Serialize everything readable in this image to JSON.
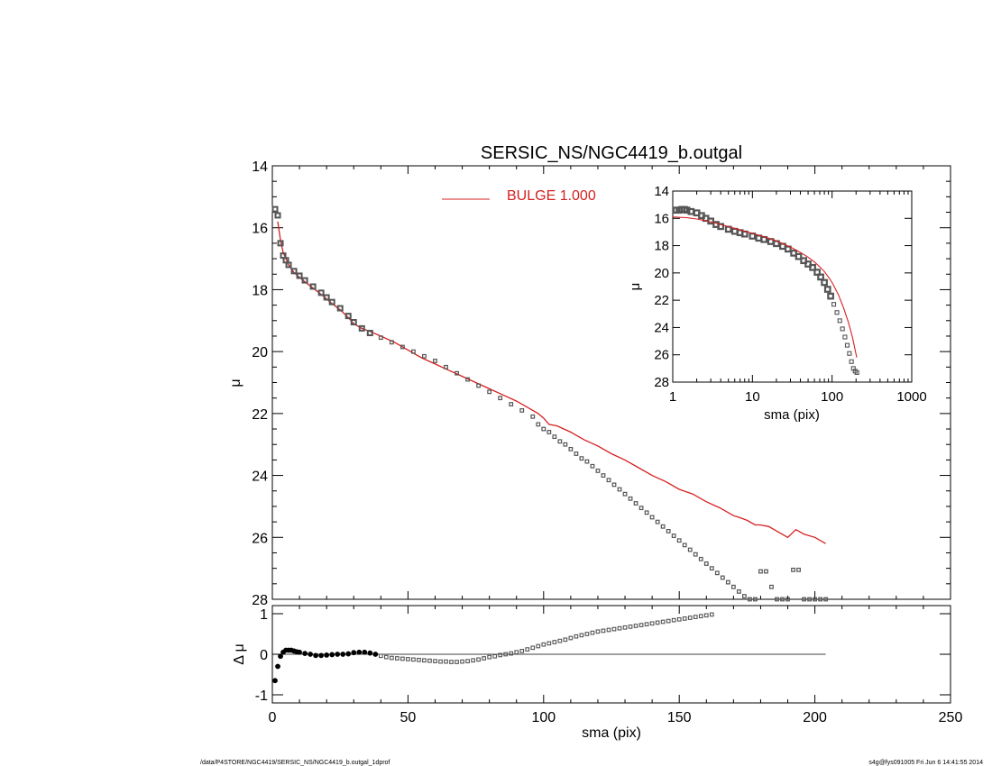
{
  "chart_data": [
    {
      "id": "main",
      "type": "scatter",
      "title": "SERSIC_NS/NGC4419_b.outgal",
      "xlabel": "",
      "ylabel": "μ",
      "xlim": [
        0,
        250
      ],
      "ylim": [
        28,
        14
      ],
      "y_reversed": true,
      "xticks": [
        "0",
        "50",
        "100",
        "150",
        "200",
        "250"
      ],
      "yticks": [
        "14",
        "16",
        "18",
        "20",
        "22",
        "24",
        "26",
        "28"
      ],
      "legend": {
        "label": "BULGE  1.000",
        "color": "#d62020",
        "placement": "top-center"
      },
      "series": [
        {
          "kind": "markers",
          "color": "#555555",
          "x": [
            1,
            2,
            3,
            4,
            5,
            6,
            8,
            10,
            12,
            15,
            18,
            20,
            22,
            25,
            28,
            30,
            33,
            36,
            40,
            44,
            48,
            52,
            56,
            60,
            64,
            68,
            72,
            76,
            80,
            84,
            88,
            92,
            96,
            98,
            100,
            102,
            104,
            106,
            108,
            110,
            112,
            114,
            116,
            118,
            120,
            122,
            124,
            126,
            128,
            130,
            132,
            134,
            136,
            138,
            140,
            142,
            144,
            146,
            148,
            150,
            152,
            154,
            156,
            158,
            160,
            162,
            164,
            166,
            168,
            170,
            172,
            174,
            176,
            178,
            180,
            182,
            184,
            186,
            188,
            190,
            192,
            194,
            196,
            198,
            200,
            202,
            204
          ],
          "y": [
            15.4,
            15.6,
            16.5,
            16.9,
            17.05,
            17.2,
            17.4,
            17.55,
            17.7,
            17.9,
            18.1,
            18.25,
            18.4,
            18.6,
            18.85,
            19.05,
            19.25,
            19.4,
            19.55,
            19.7,
            19.85,
            20.0,
            20.15,
            20.3,
            20.5,
            20.7,
            20.9,
            21.1,
            21.3,
            21.5,
            21.7,
            21.9,
            22.1,
            22.35,
            22.5,
            22.6,
            22.75,
            22.9,
            23.0,
            23.15,
            23.3,
            23.45,
            23.55,
            23.7,
            23.85,
            24.0,
            24.15,
            24.3,
            24.45,
            24.6,
            24.75,
            24.9,
            25.05,
            25.2,
            25.35,
            25.5,
            25.65,
            25.8,
            25.95,
            26.1,
            26.25,
            26.4,
            26.55,
            26.7,
            26.85,
            27.0,
            27.15,
            27.3,
            27.45,
            27.6,
            27.75,
            27.9,
            28.05,
            28.2,
            27.1,
            27.1,
            27.6,
            28.0,
            28.0,
            28.0,
            27.05,
            27.05,
            28.0,
            28.0,
            28.0,
            28.0,
            28.0
          ]
        },
        {
          "kind": "line",
          "color": "#d62020",
          "name": "BULGE  1.000",
          "x": [
            2,
            3,
            4,
            5,
            6,
            8,
            10,
            12,
            15,
            18,
            20,
            22,
            25,
            28,
            30,
            33,
            36,
            40,
            45,
            50,
            55,
            60,
            65,
            70,
            75,
            80,
            85,
            90,
            95,
            98,
            100,
            102,
            105,
            110,
            115,
            120,
            125,
            130,
            135,
            140,
            145,
            150,
            155,
            160,
            165,
            170,
            172,
            175,
            178,
            180,
            183,
            186,
            190,
            193,
            196,
            200,
            204
          ],
          "y": [
            15.8,
            16.4,
            16.8,
            17.0,
            17.2,
            17.45,
            17.6,
            17.75,
            17.95,
            18.15,
            18.3,
            18.45,
            18.65,
            18.9,
            19.1,
            19.25,
            19.35,
            19.5,
            19.7,
            19.95,
            20.2,
            20.4,
            20.6,
            20.8,
            21.0,
            21.2,
            21.4,
            21.6,
            21.85,
            22.0,
            22.15,
            22.35,
            22.4,
            22.6,
            22.85,
            23.05,
            23.3,
            23.5,
            23.75,
            24.0,
            24.2,
            24.45,
            24.6,
            24.85,
            25.05,
            25.3,
            25.35,
            25.45,
            25.6,
            25.6,
            25.65,
            25.8,
            26.0,
            25.75,
            25.9,
            26.0,
            26.2
          ]
        }
      ]
    },
    {
      "id": "residual",
      "type": "scatter",
      "xlabel": "sma (pix)",
      "ylabel": "Δ μ",
      "xlim": [
        0,
        250
      ],
      "ylim": [
        -1.2,
        1.2
      ],
      "xticks": [
        "0",
        "50",
        "100",
        "150",
        "200",
        "250"
      ],
      "yticks": [
        "1",
        "0",
        "-1"
      ],
      "series": [
        {
          "kind": "markers",
          "color": "#555555",
          "x": [
            1,
            2,
            3,
            4,
            5,
            6,
            7,
            8,
            9,
            10,
            12,
            14,
            16,
            18,
            20,
            22,
            24,
            26,
            28,
            30,
            32,
            34,
            36,
            38,
            40,
            42,
            44,
            46,
            48,
            50,
            52,
            54,
            56,
            58,
            60,
            62,
            64,
            66,
            68,
            70,
            72,
            74,
            76,
            78,
            80,
            82,
            84,
            86,
            88,
            90,
            92,
            94,
            96,
            98,
            100,
            102,
            104,
            106,
            108,
            110,
            112,
            114,
            116,
            118,
            120,
            122,
            124,
            126,
            128,
            130,
            132,
            134,
            136,
            138,
            140,
            142,
            144,
            146,
            148,
            150,
            152,
            154,
            156,
            158,
            160,
            162
          ],
          "y": [
            -0.65,
            -0.3,
            -0.05,
            0.05,
            0.1,
            0.1,
            0.1,
            0.08,
            0.06,
            0.05,
            0.02,
            0.0,
            -0.03,
            -0.03,
            -0.02,
            -0.01,
            0.0,
            0.0,
            0.01,
            0.04,
            0.05,
            0.05,
            0.03,
            0.0,
            -0.04,
            -0.07,
            -0.09,
            -0.1,
            -0.11,
            -0.12,
            -0.13,
            -0.14,
            -0.15,
            -0.16,
            -0.17,
            -0.18,
            -0.18,
            -0.19,
            -0.19,
            -0.18,
            -0.17,
            -0.15,
            -0.13,
            -0.1,
            -0.07,
            -0.05,
            -0.02,
            0.0,
            0.02,
            0.05,
            0.08,
            0.12,
            0.16,
            0.2,
            0.24,
            0.27,
            0.3,
            0.33,
            0.36,
            0.4,
            0.44,
            0.47,
            0.5,
            0.53,
            0.56,
            0.58,
            0.6,
            0.62,
            0.64,
            0.66,
            0.68,
            0.7,
            0.72,
            0.74,
            0.76,
            0.78,
            0.8,
            0.82,
            0.84,
            0.86,
            0.88,
            0.9,
            0.92,
            0.94,
            0.96,
            0.98
          ]
        },
        {
          "kind": "line",
          "color": "#000000",
          "x": [
            1,
            204
          ],
          "y": [
            0,
            0
          ]
        }
      ]
    },
    {
      "id": "inset",
      "type": "scatter",
      "xlabel": "sma (pix)",
      "ylabel": "μ",
      "xscale": "log",
      "xlim": [
        1,
        1000
      ],
      "ylim": [
        28,
        14
      ],
      "y_reversed": true,
      "xticks": [
        "1",
        "10",
        "100",
        "1000"
      ],
      "yticks": [
        "14",
        "16",
        "18",
        "20",
        "22",
        "24",
        "26",
        "28"
      ],
      "series": [
        {
          "kind": "markers",
          "color": "#555555",
          "x": [
            1.1,
            1.2,
            1.3,
            1.4,
            1.5,
            1.7,
            2,
            2.3,
            2.6,
            3,
            3.5,
            4,
            5,
            6,
            7,
            8,
            10,
            12,
            14,
            17,
            20,
            24,
            28,
            33,
            38,
            44,
            50,
            57,
            65,
            72,
            80,
            88,
            96,
            105,
            115,
            125,
            135,
            145,
            155,
            165,
            175,
            185,
            195,
            205
          ],
          "y": [
            15.4,
            15.4,
            15.35,
            15.35,
            15.4,
            15.5,
            15.6,
            15.8,
            16.0,
            16.2,
            16.45,
            16.6,
            16.8,
            16.95,
            17.05,
            17.15,
            17.3,
            17.45,
            17.55,
            17.7,
            17.85,
            18.05,
            18.25,
            18.55,
            18.8,
            19.1,
            19.35,
            19.6,
            19.95,
            20.3,
            20.7,
            21.2,
            21.7,
            22.3,
            22.9,
            23.5,
            24.1,
            24.7,
            25.3,
            25.9,
            26.5,
            27.0,
            27.2,
            27.3
          ]
        },
        {
          "kind": "line",
          "color": "#d62020",
          "x": [
            1,
            1.5,
            2,
            3,
            4,
            5,
            7,
            10,
            15,
            20,
            30,
            40,
            50,
            60,
            70,
            80,
            90,
            100,
            120,
            140,
            160,
            180,
            204
          ],
          "y": [
            15.9,
            15.95,
            16.05,
            16.25,
            16.45,
            16.6,
            16.85,
            17.1,
            17.4,
            17.65,
            18.1,
            18.5,
            18.85,
            19.2,
            19.55,
            19.9,
            20.3,
            20.7,
            21.6,
            22.6,
            23.6,
            24.7,
            26.2
          ]
        }
      ]
    }
  ],
  "footer": {
    "left": "/data/P4STORE/NGC4419/SERSIC_NS/NGC4419_b.outgal_1dprof",
    "right": "s4g@fys091005  Fri Jun  6 14:41:55 2014"
  }
}
